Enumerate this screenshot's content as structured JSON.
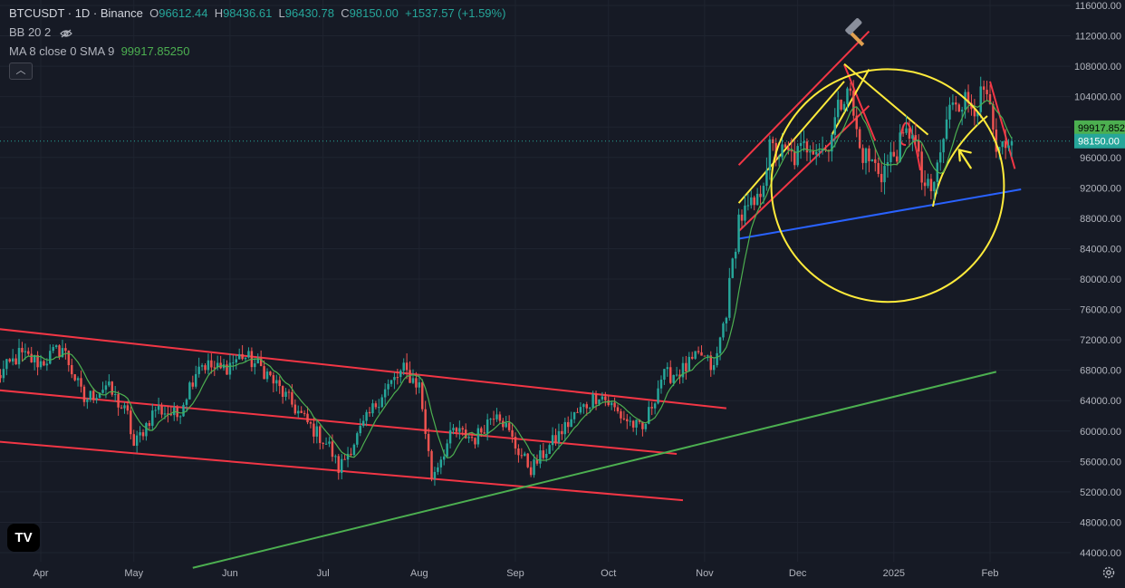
{
  "legend": {
    "symbol": "BTCUSDT · 1D · Binance",
    "o_label": "O",
    "o": "96612.44",
    "h_label": "H",
    "h": "98436.61",
    "l_label": "L",
    "l": "96430.78",
    "c_label": "C",
    "c": "98150.00",
    "change": "+1537.57 (+1.59%)",
    "bb": "BB 20 2",
    "ma": "MA 8 close 0 SMA 9",
    "ma_value": "99917.85250"
  },
  "collapse_icon": "chevron-up-icon",
  "logo": {
    "text": "TV"
  },
  "colors": {
    "up": "#26a69a",
    "down": "#ef5350",
    "ma": "#4caf50",
    "red_line": "#f23645",
    "yellow_line": "#ffeb3b",
    "blue_line": "#2962ff",
    "green_line": "#4caf50",
    "ma_label_bg": "#4caf50",
    "price_label_bg": "#26a69a"
  },
  "chart_data": {
    "type": "candlestick",
    "price_axis": {
      "ticks": [
        "116000.00",
        "112000.00",
        "108000.00",
        "104000.00",
        "100000.00",
        "96000.00",
        "92000.00",
        "88000.00",
        "84000.00",
        "80000.00",
        "76000.00",
        "72000.00",
        "68000.00",
        "64000.00",
        "60000.00",
        "56000.00",
        "52000.00",
        "48000.00",
        "44000.00"
      ],
      "range": [
        42000,
        117000
      ],
      "ma_label": "99917.8525",
      "price_label": "98150.00",
      "last_price": 98150
    },
    "time_axis": {
      "ticks": [
        "Apr",
        "May",
        "Jun",
        "Jul",
        "Aug",
        "Sep",
        "Oct",
        "Nov",
        "Dec",
        "2025",
        "Feb"
      ]
    },
    "series_path": [
      [
        "2024-03-18",
        67000
      ],
      [
        "2024-03-25",
        70000
      ],
      [
        "2024-04-01",
        69000
      ],
      [
        "2024-04-08",
        71000
      ],
      [
        "2024-04-15",
        64000
      ],
      [
        "2024-04-22",
        66000
      ],
      [
        "2024-04-29",
        62000
      ],
      [
        "2024-05-01",
        58000
      ],
      [
        "2024-05-08",
        63000
      ],
      [
        "2024-05-15",
        62000
      ],
      [
        "2024-05-22",
        69000
      ],
      [
        "2024-05-29",
        68000
      ],
      [
        "2024-06-05",
        70000
      ],
      [
        "2024-06-12",
        68000
      ],
      [
        "2024-06-19",
        64500
      ],
      [
        "2024-06-26",
        61000
      ],
      [
        "2024-07-03",
        58000
      ],
      [
        "2024-07-06",
        55000
      ],
      [
        "2024-07-13",
        60000
      ],
      [
        "2024-07-20",
        65000
      ],
      [
        "2024-07-27",
        68000
      ],
      [
        "2024-08-01",
        66000
      ],
      [
        "2024-08-05",
        54000
      ],
      [
        "2024-08-12",
        60000
      ],
      [
        "2024-08-19",
        59000
      ],
      [
        "2024-08-26",
        63000
      ],
      [
        "2024-09-01",
        58000
      ],
      [
        "2024-09-06",
        55000
      ],
      [
        "2024-09-10",
        57000
      ],
      [
        "2024-09-20",
        62000
      ],
      [
        "2024-09-28",
        65000
      ],
      [
        "2024-10-05",
        62000
      ],
      [
        "2024-10-12",
        60000
      ],
      [
        "2024-10-18",
        67000
      ],
      [
        "2024-10-25",
        68000
      ],
      [
        "2024-10-31",
        70000
      ],
      [
        "2024-11-04",
        68000
      ],
      [
        "2024-11-08",
        76000
      ],
      [
        "2024-11-12",
        88000
      ],
      [
        "2024-11-18",
        90000
      ],
      [
        "2024-11-22",
        97000
      ],
      [
        "2024-11-30",
        96000
      ],
      [
        "2024-12-05",
        98000
      ],
      [
        "2024-12-10",
        97000
      ],
      [
        "2024-12-17",
        106000
      ],
      [
        "2024-12-21",
        97000
      ],
      [
        "2024-12-28",
        94000
      ],
      [
        "2025-01-02",
        97000
      ],
      [
        "2025-01-07",
        100000
      ],
      [
        "2025-01-10",
        93000
      ],
      [
        "2025-01-13",
        91000
      ],
      [
        "2025-01-20",
        104000
      ],
      [
        "2025-01-26",
        103000
      ],
      [
        "2025-01-31",
        104000
      ],
      [
        "2025-02-03",
        96000
      ],
      [
        "2025-02-07",
        97000
      ],
      [
        "2025-02-08",
        98150
      ]
    ],
    "ma_value": 99917.8525,
    "drawings": [
      {
        "color": "red",
        "from": [
          "2024-03-10",
          73800
        ],
        "to": [
          "2024-11-08",
          63000
        ]
      },
      {
        "color": "red",
        "from": [
          "2024-03-10",
          65700
        ],
        "to": [
          "2024-10-23",
          57000
        ]
      },
      {
        "color": "red",
        "from": [
          "2024-03-10",
          58900
        ],
        "to": [
          "2024-10-25",
          50900
        ]
      },
      {
        "color": "green",
        "from": [
          "2024-05-20",
          42000
        ],
        "to": [
          "2025-02-03",
          67800
        ]
      },
      {
        "color": "blue",
        "from": [
          "2024-11-12",
          85300
        ],
        "to": [
          "2025-02-11",
          91800
        ]
      },
      {
        "color": "red",
        "from": [
          "2024-11-12",
          95000
        ],
        "to": [
          "2024-12-24",
          112600
        ]
      },
      {
        "color": "red",
        "from": [
          "2024-11-12",
          86300
        ],
        "to": [
          "2024-12-24",
          102800
        ]
      },
      {
        "color": "red",
        "from": [
          "2024-12-16",
          108200
        ],
        "to": [
          "2024-12-26",
          98200
        ]
      },
      {
        "color": "red",
        "from": [
          "2025-02-01",
          106000
        ],
        "to": [
          "2025-02-09",
          94500
        ]
      },
      {
        "color": "yellow",
        "from": [
          "2024-11-12",
          90000
        ],
        "to": [
          "2024-12-16",
          106000
        ]
      },
      {
        "color": "yellow",
        "from": [
          "2024-12-16",
          108300
        ],
        "to": [
          "2025-01-12",
          99000
        ]
      },
      {
        "color": "yellow",
        "from": [
          "2024-12-12",
          99000
        ],
        "to": [
          "2024-12-24",
          107600
        ]
      }
    ],
    "annotations": [
      {
        "type": "circle",
        "color": "yellow",
        "center": [
          "2024-12-30",
          92300
        ],
        "radius_days": 5
      },
      {
        "type": "arrow",
        "color": "yellow",
        "at": [
          "2025-01-22",
          97000
        ]
      },
      {
        "type": "hammer-icon",
        "at": [
          "2024-12-19",
          113000
        ]
      }
    ]
  }
}
